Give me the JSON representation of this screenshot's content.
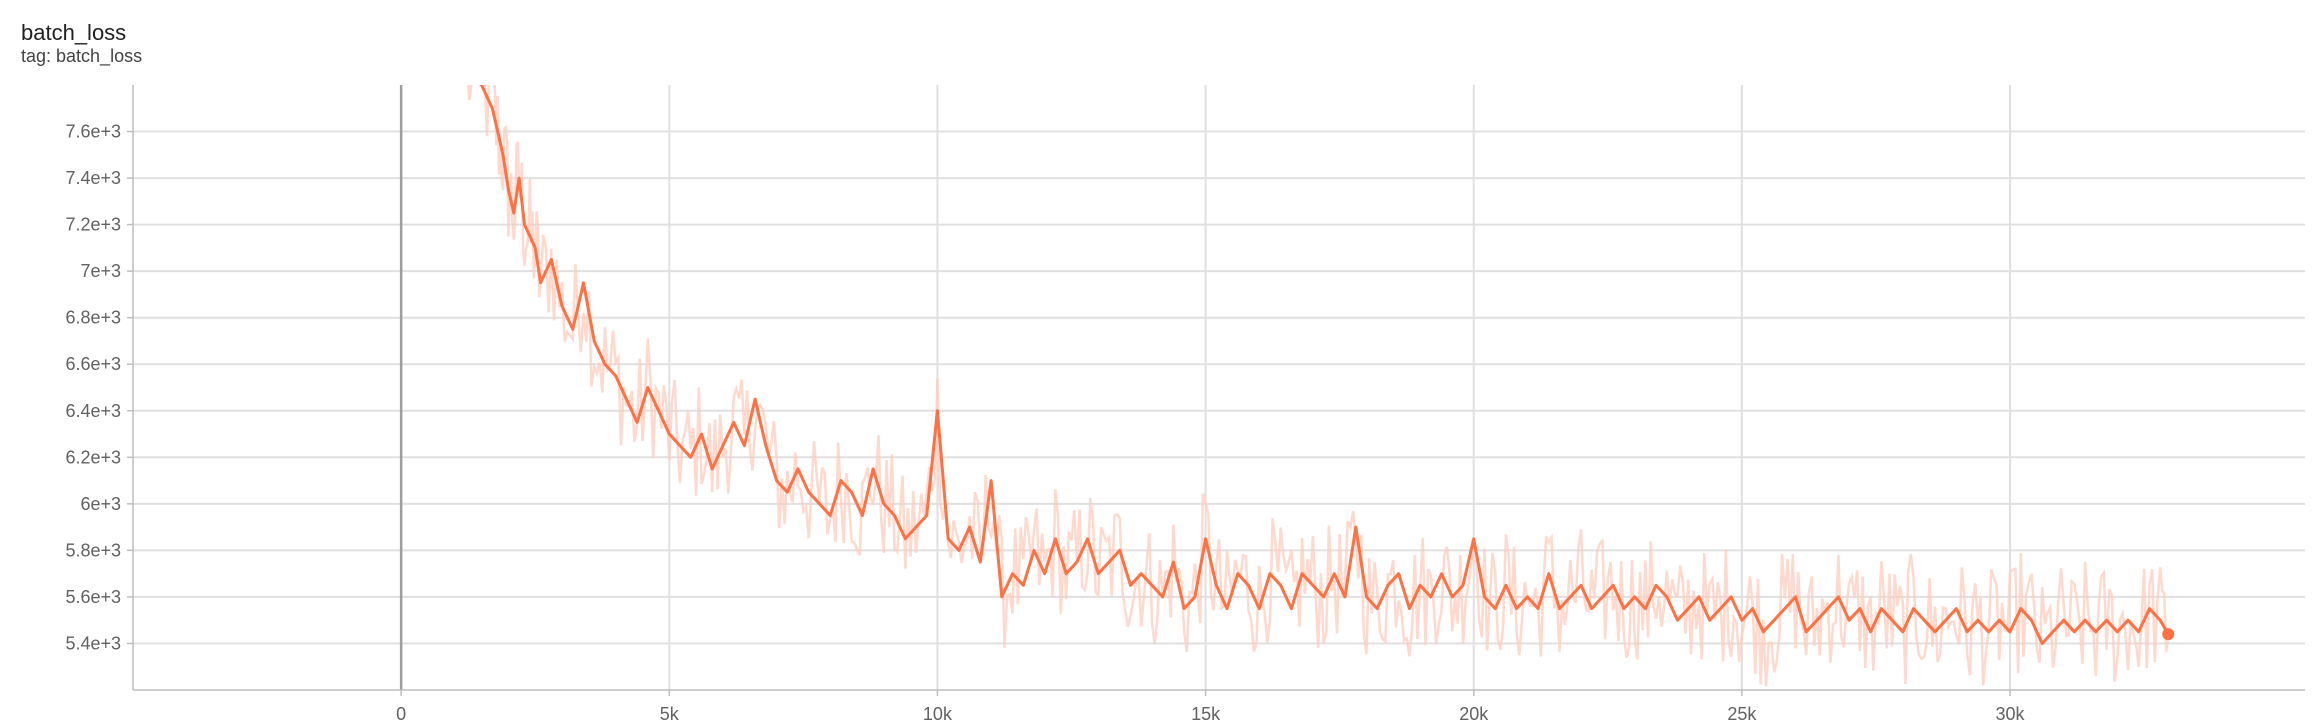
{
  "card": {
    "title": "batch_loss",
    "subtitle": "tag: batch_loss"
  },
  "chart_data": {
    "type": "line",
    "title": "batch_loss",
    "xlabel": "",
    "ylabel": "",
    "xlim": [
      -5000,
      35500
    ],
    "ylim": [
      5200,
      7800
    ],
    "x_ticks": [
      0,
      5000,
      10000,
      15000,
      20000,
      25000,
      30000
    ],
    "x_tick_labels": [
      "0",
      "5k",
      "10k",
      "15k",
      "20k",
      "25k",
      "30k"
    ],
    "y_ticks": [
      5400,
      5600,
      5800,
      6000,
      6200,
      6400,
      6600,
      6800,
      7000,
      7200,
      7400,
      7600
    ],
    "y_tick_labels": [
      "5.4e+3",
      "5.6e+3",
      "5.8e+3",
      "6e+3",
      "6.2e+3",
      "6.4e+3",
      "6.6e+3",
      "6.8e+3",
      "7e+3",
      "7.2e+3",
      "7.4e+3",
      "7.6e+3"
    ],
    "grid": true,
    "colors": {
      "smoothed": "#ff7043",
      "raw": "#ffccbc",
      "zero_line": "#9e9e9e",
      "grid": "#e0e0e0"
    },
    "series": [
      {
        "values": [
          [
            1200,
            7850
          ],
          [
            1500,
            7800
          ],
          [
            1700,
            7700
          ],
          [
            1800,
            7600
          ],
          [
            1900,
            7500
          ],
          [
            2000,
            7350
          ],
          [
            2100,
            7250
          ],
          [
            2200,
            7400
          ],
          [
            2300,
            7200
          ],
          [
            2400,
            7150
          ],
          [
            2500,
            7100
          ],
          [
            2600,
            6950
          ],
          [
            2800,
            7050
          ],
          [
            3000,
            6850
          ],
          [
            3200,
            6750
          ],
          [
            3400,
            6950
          ],
          [
            3600,
            6700
          ],
          [
            3800,
            6600
          ],
          [
            4000,
            6550
          ],
          [
            4200,
            6450
          ],
          [
            4400,
            6350
          ],
          [
            4600,
            6500
          ],
          [
            4800,
            6400
          ],
          [
            5000,
            6300
          ],
          [
            5200,
            6250
          ],
          [
            5400,
            6200
          ],
          [
            5600,
            6300
          ],
          [
            5800,
            6150
          ],
          [
            6000,
            6250
          ],
          [
            6200,
            6350
          ],
          [
            6400,
            6250
          ],
          [
            6600,
            6450
          ],
          [
            6800,
            6250
          ],
          [
            7000,
            6100
          ],
          [
            7200,
            6050
          ],
          [
            7400,
            6150
          ],
          [
            7600,
            6050
          ],
          [
            7800,
            6000
          ],
          [
            8000,
            5950
          ],
          [
            8200,
            6100
          ],
          [
            8400,
            6050
          ],
          [
            8600,
            5950
          ],
          [
            8800,
            6150
          ],
          [
            9000,
            6000
          ],
          [
            9200,
            5950
          ],
          [
            9400,
            5850
          ],
          [
            9600,
            5900
          ],
          [
            9800,
            5950
          ],
          [
            10000,
            6400
          ],
          [
            10200,
            5850
          ],
          [
            10400,
            5800
          ],
          [
            10600,
            5900
          ],
          [
            10800,
            5750
          ],
          [
            11000,
            6100
          ],
          [
            11200,
            5600
          ],
          [
            11400,
            5700
          ],
          [
            11600,
            5650
          ],
          [
            11800,
            5800
          ],
          [
            12000,
            5700
          ],
          [
            12200,
            5850
          ],
          [
            12400,
            5700
          ],
          [
            12600,
            5750
          ],
          [
            12800,
            5850
          ],
          [
            13000,
            5700
          ],
          [
            13200,
            5750
          ],
          [
            13400,
            5800
          ],
          [
            13600,
            5650
          ],
          [
            13800,
            5700
          ],
          [
            14000,
            5650
          ],
          [
            14200,
            5600
          ],
          [
            14400,
            5750
          ],
          [
            14600,
            5550
          ],
          [
            14800,
            5600
          ],
          [
            15000,
            5850
          ],
          [
            15200,
            5650
          ],
          [
            15400,
            5550
          ],
          [
            15600,
            5700
          ],
          [
            15800,
            5650
          ],
          [
            16000,
            5550
          ],
          [
            16200,
            5700
          ],
          [
            16400,
            5650
          ],
          [
            16600,
            5550
          ],
          [
            16800,
            5700
          ],
          [
            17000,
            5650
          ],
          [
            17200,
            5600
          ],
          [
            17400,
            5700
          ],
          [
            17600,
            5600
          ],
          [
            17800,
            5900
          ],
          [
            18000,
            5600
          ],
          [
            18200,
            5550
          ],
          [
            18400,
            5650
          ],
          [
            18600,
            5700
          ],
          [
            18800,
            5550
          ],
          [
            19000,
            5650
          ],
          [
            19200,
            5600
          ],
          [
            19400,
            5700
          ],
          [
            19600,
            5600
          ],
          [
            19800,
            5650
          ],
          [
            20000,
            5850
          ],
          [
            20200,
            5600
          ],
          [
            20400,
            5550
          ],
          [
            20600,
            5650
          ],
          [
            20800,
            5550
          ],
          [
            21000,
            5600
          ],
          [
            21200,
            5550
          ],
          [
            21400,
            5700
          ],
          [
            21600,
            5550
          ],
          [
            21800,
            5600
          ],
          [
            22000,
            5650
          ],
          [
            22200,
            5550
          ],
          [
            22400,
            5600
          ],
          [
            22600,
            5650
          ],
          [
            22800,
            5550
          ],
          [
            23000,
            5600
          ],
          [
            23200,
            5550
          ],
          [
            23400,
            5650
          ],
          [
            23600,
            5600
          ],
          [
            23800,
            5500
          ],
          [
            24000,
            5550
          ],
          [
            24200,
            5600
          ],
          [
            24400,
            5500
          ],
          [
            24600,
            5550
          ],
          [
            24800,
            5600
          ],
          [
            25000,
            5500
          ],
          [
            25200,
            5550
          ],
          [
            25400,
            5450
          ],
          [
            25600,
            5500
          ],
          [
            25800,
            5550
          ],
          [
            26000,
            5600
          ],
          [
            26200,
            5450
          ],
          [
            26400,
            5500
          ],
          [
            26600,
            5550
          ],
          [
            26800,
            5600
          ],
          [
            27000,
            5500
          ],
          [
            27200,
            5550
          ],
          [
            27400,
            5450
          ],
          [
            27600,
            5550
          ],
          [
            27800,
            5500
          ],
          [
            28000,
            5450
          ],
          [
            28200,
            5550
          ],
          [
            28400,
            5500
          ],
          [
            28600,
            5450
          ],
          [
            28800,
            5500
          ],
          [
            29000,
            5550
          ],
          [
            29200,
            5450
          ],
          [
            29400,
            5500
          ],
          [
            29600,
            5450
          ],
          [
            29800,
            5500
          ],
          [
            30000,
            5450
          ],
          [
            30200,
            5550
          ],
          [
            30400,
            5500
          ],
          [
            30600,
            5400
          ],
          [
            30800,
            5450
          ],
          [
            31000,
            5500
          ],
          [
            31200,
            5450
          ],
          [
            31400,
            5500
          ],
          [
            31600,
            5450
          ],
          [
            31800,
            5500
          ],
          [
            32000,
            5450
          ],
          [
            32200,
            5500
          ],
          [
            32400,
            5450
          ],
          [
            32600,
            5550
          ],
          [
            32800,
            5500
          ],
          [
            32950,
            5440
          ]
        ]
      }
    ]
  }
}
